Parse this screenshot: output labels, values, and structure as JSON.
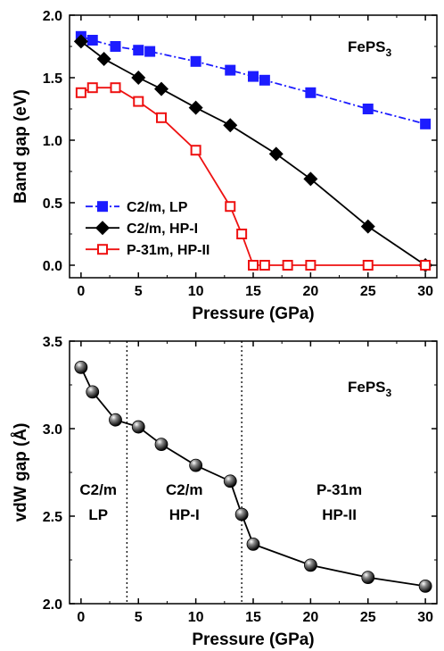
{
  "chart_data": [
    {
      "type": "line",
      "title": "",
      "annotation": {
        "prefix": "FePS",
        "sub": "3"
      },
      "xlabel": "Pressure (GPa)",
      "ylabel": "Band gap (eV)",
      "xlim": [
        -1,
        31
      ],
      "ylim": [
        -0.1,
        2.0
      ],
      "xticks": [
        0,
        5,
        10,
        15,
        20,
        25,
        30
      ],
      "yticks": [
        0.0,
        0.5,
        1.0,
        1.5,
        2.0
      ],
      "ytick_labels": [
        "0.0",
        "0.5",
        "1.0",
        "1.5",
        "2.0"
      ],
      "legend_position": "lower-left",
      "series": [
        {
          "name": "C2/m, LP",
          "color": "#1c1cff",
          "marker": "square-filled",
          "dash": true,
          "x": [
            0,
            1,
            3,
            5,
            6,
            10,
            13,
            15,
            16,
            20,
            25,
            30
          ],
          "y": [
            1.83,
            1.8,
            1.75,
            1.72,
            1.71,
            1.63,
            1.56,
            1.51,
            1.48,
            1.38,
            1.25,
            1.13
          ]
        },
        {
          "name": "C2/m, HP-I",
          "color": "#000000",
          "marker": "diamond-filled",
          "dash": false,
          "x": [
            0,
            2,
            5,
            7,
            10,
            13,
            17,
            20,
            25,
            30
          ],
          "y": [
            1.79,
            1.65,
            1.5,
            1.41,
            1.26,
            1.12,
            0.89,
            0.69,
            0.31,
            0.0
          ]
        },
        {
          "name": "P-31m, HP-II",
          "color": "#ee1111",
          "marker": "square-open",
          "dash": false,
          "x": [
            0,
            1,
            3,
            5,
            7,
            10,
            13,
            14,
            15,
            16,
            18,
            20,
            25,
            30
          ],
          "y": [
            1.38,
            1.42,
            1.42,
            1.31,
            1.18,
            0.92,
            0.47,
            0.25,
            0.0,
            0.0,
            0.0,
            0.0,
            0.0,
            0.0
          ]
        }
      ]
    },
    {
      "type": "line",
      "title": "",
      "annotation": {
        "prefix": "FePS",
        "sub": "3"
      },
      "xlabel": "Pressure (GPa)",
      "ylabel": "vdW gap (Å)",
      "xlim": [
        -1,
        31
      ],
      "ylim": [
        2.0,
        3.5
      ],
      "xticks": [
        0,
        5,
        10,
        15,
        20,
        25,
        30
      ],
      "yticks": [
        2.0,
        2.5,
        3.0,
        3.5
      ],
      "ytick_labels": [
        "2.0",
        "2.5",
        "3.0",
        "3.5"
      ],
      "phase_boundaries": [
        4,
        14
      ],
      "phase_labels": [
        {
          "line1": "C2/m",
          "line2": "LP",
          "x": 1.5
        },
        {
          "line1": "C2/m",
          "line2": "HP-I",
          "x": 9
        },
        {
          "line1": "P-31m",
          "line2": "HP-II",
          "x": 22.5
        }
      ],
      "series": [
        {
          "color": "#000000",
          "marker": "sphere",
          "x": [
            0,
            1,
            3,
            5,
            7,
            10,
            13,
            14,
            15,
            20,
            25,
            30
          ],
          "y": [
            3.35,
            3.21,
            3.05,
            3.01,
            2.91,
            2.79,
            2.7,
            2.51,
            2.34,
            2.22,
            2.15,
            2.1
          ]
        }
      ]
    }
  ]
}
